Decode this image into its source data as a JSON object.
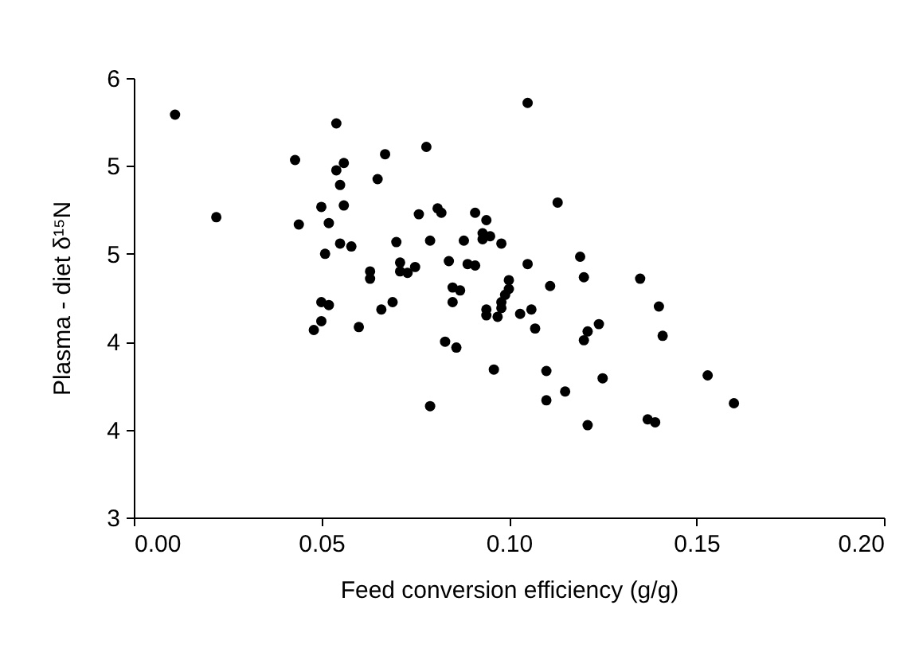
{
  "chart_data": {
    "type": "scatter",
    "xlabel": "Feed conversion efficiency (g/g)",
    "ylabel": "Plasma - diet δ¹⁵N",
    "marker": "circle",
    "grid": false,
    "xlim": [
      0,
      0.2
    ],
    "xticks": [
      {
        "value": 0,
        "label": "0.00"
      },
      {
        "value": 0.05,
        "label": "0.05"
      },
      {
        "value": 0.1,
        "label": "0.10"
      },
      {
        "value": 0.15,
        "label": "0.15"
      },
      {
        "value": 0.2,
        "label": "0.20"
      }
    ],
    "ylim": [
      3,
      6
    ],
    "yticks": [
      3,
      {
        "value": 3.6,
        "label": "4"
      },
      {
        "value": 4.2,
        "label": "4"
      },
      {
        "value": 4.8,
        "label": "5"
      },
      {
        "value": 5.4,
        "label": "5"
      },
      6
    ],
    "series": [
      {
        "color": "#000000",
        "x": [
          0.011,
          0.022,
          0.043,
          0.044,
          0.05,
          0.051,
          0.05,
          0.052,
          0.05,
          0.048,
          0.052,
          0.054,
          0.056,
          0.054,
          0.055,
          0.056,
          0.055,
          0.058,
          0.06,
          0.063,
          0.063,
          0.065,
          0.067,
          0.066,
          0.069,
          0.07,
          0.071,
          0.071,
          0.073,
          0.075,
          0.076,
          0.078,
          0.079,
          0.079,
          0.081,
          0.082,
          0.084,
          0.083,
          0.086,
          0.085,
          0.087,
          0.085,
          0.088,
          0.089,
          0.091,
          0.091,
          0.094,
          0.093,
          0.095,
          0.093,
          0.098,
          0.096,
          0.1,
          0.1,
          0.099,
          0.098,
          0.098,
          0.094,
          0.094,
          0.097,
          0.103,
          0.105,
          0.105,
          0.113,
          0.119,
          0.12,
          0.111,
          0.106,
          0.107,
          0.124,
          0.121,
          0.12,
          0.11,
          0.11,
          0.115,
          0.125,
          0.121,
          0.135,
          0.14,
          0.141,
          0.153,
          0.16,
          0.137,
          0.139
        ],
        "values": [
          5.75,
          5.05,
          5.44,
          5.0,
          5.12,
          4.8,
          4.47,
          4.45,
          4.34,
          4.28,
          5.01,
          5.69,
          5.42,
          5.37,
          5.27,
          5.13,
          4.87,
          4.85,
          4.3,
          4.68,
          4.63,
          5.31,
          5.48,
          4.42,
          4.47,
          4.88,
          4.74,
          4.68,
          4.67,
          4.71,
          5.07,
          5.53,
          4.89,
          3.76,
          5.11,
          5.08,
          4.75,
          4.2,
          4.16,
          4.57,
          4.55,
          4.47,
          4.89,
          4.73,
          4.72,
          5.08,
          5.03,
          4.94,
          4.92,
          4.9,
          4.87,
          4.01,
          4.62,
          4.56,
          4.52,
          4.47,
          4.43,
          4.42,
          4.38,
          4.37,
          4.39,
          5.83,
          4.73,
          5.15,
          4.78,
          4.64,
          4.58,
          4.42,
          4.29,
          4.32,
          4.27,
          4.21,
          4.0,
          3.8,
          3.86,
          3.95,
          3.63,
          4.63,
          4.44,
          4.24,
          3.97,
          3.78,
          3.67,
          3.65
        ]
      }
    ]
  }
}
